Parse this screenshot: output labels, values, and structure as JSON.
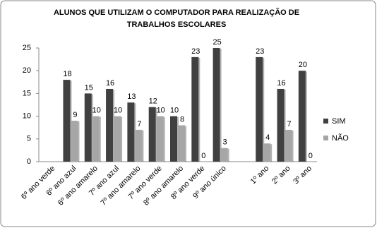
{
  "chart_data": {
    "type": "bar",
    "title": "ALUNOS QUE UTILIZAM O COMPUTADOR PARA REALIZAÇÃO DE TRABALHOS ESCOLARES",
    "categories": [
      "6º ano verde",
      "6º ano azul",
      "6º ano amarelo",
      "7º ano azul",
      "7º ano amarelo",
      "7º ano verde",
      "8º ano amarelo",
      "8º ano verde",
      "9º ano único",
      null,
      "1º ano",
      "2º ano",
      "3º ano"
    ],
    "series": [
      {
        "name": "SIM",
        "color": "#404040",
        "values": [
          null,
          18,
          15,
          16,
          13,
          12,
          10,
          23,
          25,
          null,
          23,
          16,
          20
        ]
      },
      {
        "name": "NÃO",
        "color": "#a6a6a6",
        "values": [
          null,
          9,
          10,
          10,
          7,
          10,
          8,
          0,
          3,
          null,
          4,
          7,
          0
        ]
      }
    ],
    "ylim": [
      0,
      25
    ],
    "yticks": [
      0,
      5,
      10,
      15,
      20,
      25
    ],
    "grid": false,
    "legend": "right"
  }
}
